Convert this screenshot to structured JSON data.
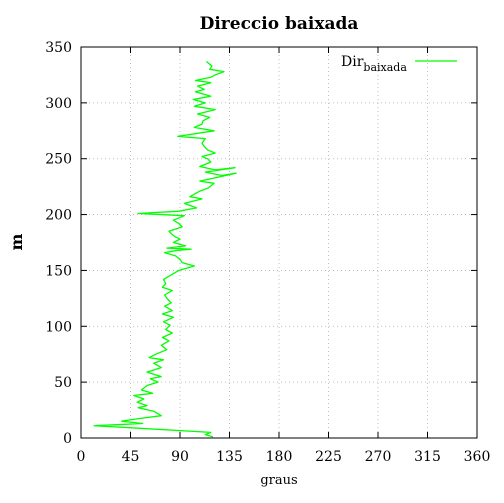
{
  "chart_data": {
    "type": "line",
    "title": "Direccio baixada",
    "xlabel": "graus",
    "ylabel": "m",
    "xlim": [
      0,
      360
    ],
    "ylim": [
      0,
      350
    ],
    "xticks": [
      0,
      45,
      90,
      135,
      180,
      225,
      270,
      315,
      360
    ],
    "yticks": [
      0,
      50,
      100,
      150,
      200,
      250,
      300,
      350
    ],
    "grid": true,
    "legend": "top-right",
    "series": [
      {
        "name": "Dir",
        "name_subscript": "baixada",
        "color": "#00ff00",
        "points": [
          [
            114,
            337
          ],
          [
            119,
            333
          ],
          [
            117,
            330
          ],
          [
            130,
            328
          ],
          [
            122,
            325
          ],
          [
            118,
            323
          ],
          [
            104,
            320
          ],
          [
            118,
            318
          ],
          [
            106,
            315
          ],
          [
            112,
            312
          ],
          [
            104,
            310
          ],
          [
            118,
            306
          ],
          [
            102,
            303
          ],
          [
            113,
            300
          ],
          [
            103,
            297
          ],
          [
            122,
            294
          ],
          [
            106,
            290
          ],
          [
            117,
            287
          ],
          [
            111,
            284
          ],
          [
            110,
            281
          ],
          [
            103,
            278
          ],
          [
            121,
            275
          ],
          [
            88,
            270
          ],
          [
            113,
            268
          ],
          [
            110,
            264
          ],
          [
            112,
            261
          ],
          [
            115,
            258
          ],
          [
            122,
            255
          ],
          [
            110,
            252
          ],
          [
            115,
            250
          ],
          [
            118,
            247
          ],
          [
            108,
            243
          ],
          [
            122,
            240
          ],
          [
            140,
            242
          ],
          [
            113,
            238
          ],
          [
            128,
            235
          ],
          [
            141,
            237
          ],
          [
            108,
            230
          ],
          [
            121,
            228
          ],
          [
            116,
            224
          ],
          [
            108,
            221
          ],
          [
            99,
            216
          ],
          [
            110,
            214
          ],
          [
            94,
            210
          ],
          [
            105,
            206
          ],
          [
            89,
            203
          ],
          [
            52,
            201
          ],
          [
            94,
            199
          ],
          [
            84,
            195
          ],
          [
            89,
            192
          ],
          [
            92,
            189
          ],
          [
            80,
            185
          ],
          [
            83,
            182
          ],
          [
            86,
            180
          ],
          [
            90,
            178
          ],
          [
            84,
            175
          ],
          [
            95,
            172
          ],
          [
            78,
            170
          ],
          [
            100,
            169
          ],
          [
            88,
            168
          ],
          [
            76,
            166
          ],
          [
            86,
            163
          ],
          [
            90,
            160
          ],
          [
            92,
            157
          ],
          [
            103,
            154
          ],
          [
            89,
            150
          ],
          [
            82,
            146
          ],
          [
            75,
            142
          ],
          [
            77,
            138
          ],
          [
            74,
            135
          ],
          [
            83,
            132
          ],
          [
            76,
            128
          ],
          [
            79,
            124
          ],
          [
            82,
            121
          ],
          [
            76,
            118
          ],
          [
            83,
            114
          ],
          [
            74,
            111
          ],
          [
            84,
            108
          ],
          [
            75,
            104
          ],
          [
            81,
            101
          ],
          [
            77,
            97
          ],
          [
            83,
            94
          ],
          [
            74,
            90
          ],
          [
            80,
            87
          ],
          [
            73,
            83
          ],
          [
            78,
            79
          ],
          [
            68,
            75
          ],
          [
            62,
            72
          ],
          [
            75,
            70
          ],
          [
            66,
            67
          ],
          [
            73,
            63
          ],
          [
            60,
            59
          ],
          [
            73,
            55
          ],
          [
            63,
            53
          ],
          [
            70,
            50
          ],
          [
            60,
            47
          ],
          [
            55,
            43
          ],
          [
            65,
            40
          ],
          [
            48,
            38
          ],
          [
            57,
            35
          ],
          [
            51,
            32
          ],
          [
            60,
            29
          ],
          [
            52,
            27
          ],
          [
            66,
            24
          ],
          [
            73,
            20
          ],
          [
            50,
            17
          ],
          [
            37,
            15
          ],
          [
            56,
            13
          ],
          [
            12,
            11
          ],
          [
            118,
            5
          ],
          [
            113,
            3
          ],
          [
            120,
            1
          ]
        ]
      }
    ]
  }
}
